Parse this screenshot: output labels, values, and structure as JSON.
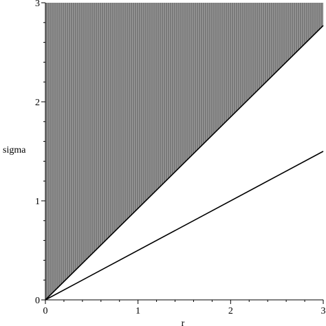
{
  "chart_data": {
    "type": "line",
    "title": "",
    "xlabel": "r",
    "ylabel": "sigma",
    "xlim": [
      0,
      3
    ],
    "ylim": [
      0,
      3
    ],
    "x_ticks": [
      "0",
      "1",
      "2",
      "3"
    ],
    "y_ticks": [
      "0",
      "1",
      "2",
      "3"
    ],
    "grid": false,
    "legend": "none",
    "shaded_region": {
      "description": "region above the steeper line",
      "boundary_x": [
        0,
        3
      ],
      "boundary_y": [
        0,
        2.77
      ],
      "color": "#808080"
    },
    "series": [
      {
        "x": [
          0,
          3
        ],
        "y": [
          0,
          2.77
        ],
        "color": "#000000"
      },
      {
        "x": [
          0,
          3
        ],
        "y": [
          0,
          1.5
        ],
        "color": "#000000"
      }
    ]
  }
}
